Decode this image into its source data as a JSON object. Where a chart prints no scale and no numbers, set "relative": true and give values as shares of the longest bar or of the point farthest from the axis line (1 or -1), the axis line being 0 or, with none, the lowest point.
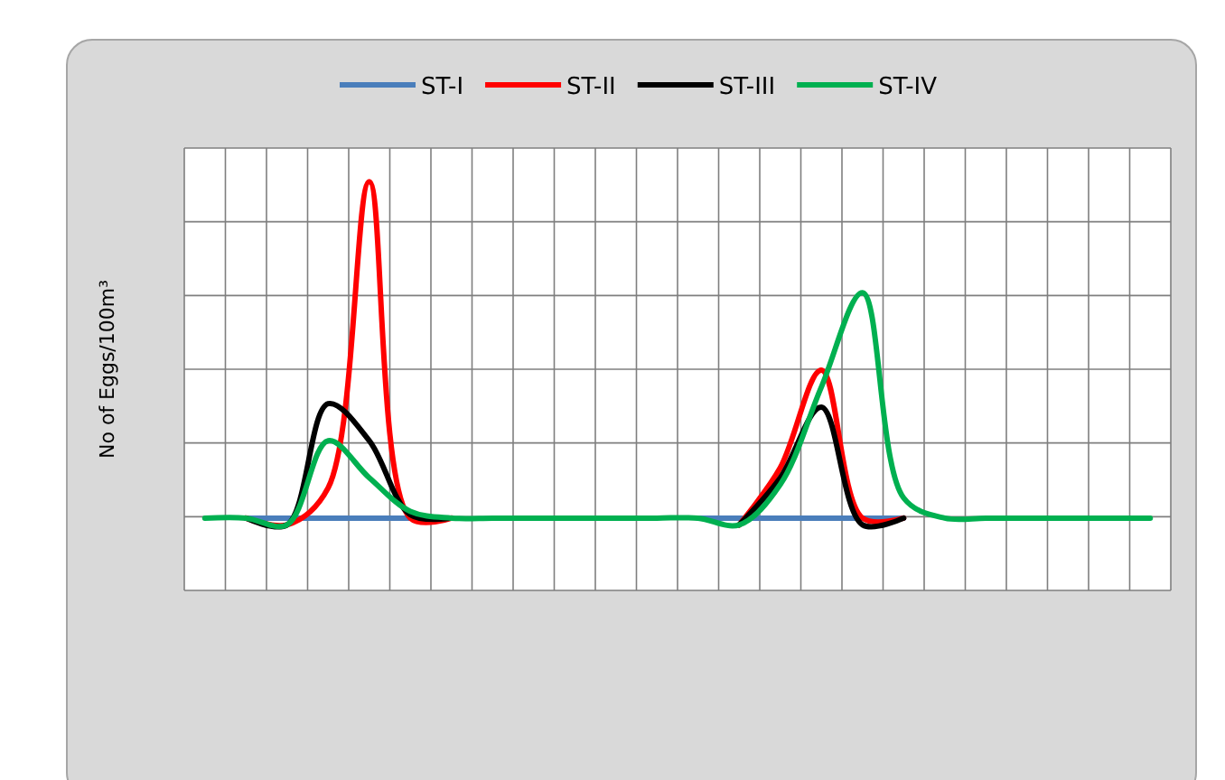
{
  "chart_data": {
    "type": "line",
    "relative": true,
    "ylabel": "No of Eggs/100m³",
    "legend": "top",
    "grid": true,
    "line_style": "solid",
    "marker": "none",
    "categories": [
      null,
      null,
      null,
      null,
      null,
      null,
      null,
      null,
      null,
      null,
      null,
      null,
      null,
      null,
      null,
      null,
      null,
      null,
      null,
      null,
      null,
      null,
      null,
      null
    ],
    "series": [
      {
        "name": "ST-I",
        "color": "#4a7ebb",
        "values": [
          null,
          0,
          0,
          0,
          0,
          0,
          null,
          null,
          null,
          null,
          null,
          null,
          0,
          0,
          0,
          0,
          0,
          0,
          null,
          null,
          null,
          null,
          null,
          null
        ]
      },
      {
        "name": "ST-II",
        "color": "#ff0000",
        "values": [
          null,
          0,
          -0.02,
          0.09,
          1,
          0,
          0,
          null,
          null,
          null,
          null,
          null,
          null,
          -0.02,
          0.15,
          0.44,
          0,
          0,
          null,
          null,
          null,
          null,
          null,
          null
        ]
      },
      {
        "name": "ST-III",
        "color": "#000000",
        "values": [
          null,
          0,
          -0.02,
          0.34,
          0.23,
          0.01,
          0,
          null,
          null,
          null,
          null,
          null,
          null,
          -0.02,
          0.12,
          0.33,
          -0.02,
          0,
          null,
          null,
          null,
          null,
          null,
          null
        ]
      },
      {
        "name": "ST-IV",
        "color": "#00b050",
        "values": [
          0,
          0,
          -0.02,
          0.23,
          0.12,
          0.02,
          0,
          0,
          0,
          0,
          0,
          0,
          0,
          -0.02,
          0.1,
          0.39,
          0.67,
          0.06,
          0,
          0,
          0,
          0,
          0,
          0
        ]
      }
    ]
  }
}
